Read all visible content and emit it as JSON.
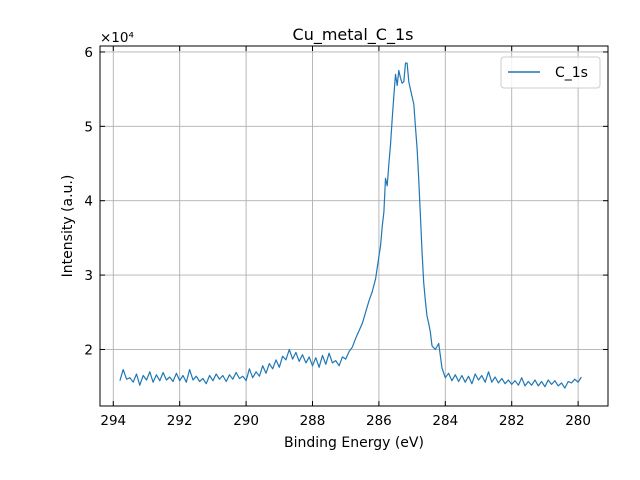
{
  "chart_data": {
    "type": "line",
    "title": "Cu_metal_C_1s",
    "xlabel": "Binding Energy (eV)",
    "ylabel": "Intensity (a.u.)",
    "y_scale_multiplier": "×10⁴",
    "x_reversed": true,
    "xlim": [
      294.4,
      279.1
    ],
    "ylim": [
      12400,
      60800
    ],
    "x_ticks": [
      294,
      292,
      290,
      288,
      286,
      284,
      282,
      280
    ],
    "x_tick_labels": [
      "294",
      "292",
      "290",
      "288",
      "286",
      "284",
      "282",
      "280"
    ],
    "y_ticks": [
      20000,
      30000,
      40000,
      50000,
      60000
    ],
    "y_tick_labels": [
      "2",
      "3",
      "4",
      "5",
      "6"
    ],
    "grid": true,
    "legend_position": "top-right",
    "series": [
      {
        "name": "C_1s",
        "color": "#1f77b4",
        "points": [
          [
            293.8,
            15800
          ],
          [
            293.7,
            17300
          ],
          [
            293.6,
            16000
          ],
          [
            293.5,
            16200
          ],
          [
            293.4,
            15600
          ],
          [
            293.3,
            16700
          ],
          [
            293.2,
            15200
          ],
          [
            293.1,
            16500
          ],
          [
            293.0,
            15900
          ],
          [
            292.9,
            17000
          ],
          [
            292.8,
            15600
          ],
          [
            292.7,
            16600
          ],
          [
            292.6,
            15800
          ],
          [
            292.5,
            16900
          ],
          [
            292.4,
            15900
          ],
          [
            292.3,
            16300
          ],
          [
            292.2,
            15700
          ],
          [
            292.1,
            16800
          ],
          [
            292.0,
            15800
          ],
          [
            291.9,
            16500
          ],
          [
            291.8,
            15600
          ],
          [
            291.7,
            17300
          ],
          [
            291.6,
            15900
          ],
          [
            291.5,
            16400
          ],
          [
            291.4,
            15700
          ],
          [
            291.3,
            16100
          ],
          [
            291.2,
            15400
          ],
          [
            291.1,
            16500
          ],
          [
            291.0,
            15800
          ],
          [
            290.9,
            16700
          ],
          [
            290.8,
            16000
          ],
          [
            290.7,
            16500
          ],
          [
            290.6,
            15700
          ],
          [
            290.5,
            16600
          ],
          [
            290.4,
            16000
          ],
          [
            290.3,
            16900
          ],
          [
            290.2,
            16100
          ],
          [
            290.1,
            16400
          ],
          [
            290.0,
            15800
          ],
          [
            289.9,
            17400
          ],
          [
            289.8,
            16200
          ],
          [
            289.7,
            17000
          ],
          [
            289.6,
            16400
          ],
          [
            289.5,
            17800
          ],
          [
            289.4,
            16800
          ],
          [
            289.3,
            18100
          ],
          [
            289.2,
            17400
          ],
          [
            289.1,
            18600
          ],
          [
            289.0,
            17600
          ],
          [
            288.9,
            19100
          ],
          [
            288.8,
            18600
          ],
          [
            288.7,
            20000
          ],
          [
            288.6,
            18700
          ],
          [
            288.5,
            19600
          ],
          [
            288.4,
            18400
          ],
          [
            288.3,
            19300
          ],
          [
            288.2,
            18200
          ],
          [
            288.1,
            19000
          ],
          [
            288.0,
            17800
          ],
          [
            287.9,
            18900
          ],
          [
            287.8,
            17600
          ],
          [
            287.7,
            19200
          ],
          [
            287.6,
            18000
          ],
          [
            287.5,
            19500
          ],
          [
            287.4,
            18200
          ],
          [
            287.3,
            18500
          ],
          [
            287.2,
            17800
          ],
          [
            287.1,
            19000
          ],
          [
            287.0,
            18700
          ],
          [
            286.9,
            19700
          ],
          [
            286.8,
            20300
          ],
          [
            286.7,
            21500
          ],
          [
            286.6,
            22500
          ],
          [
            286.5,
            23500
          ],
          [
            286.4,
            25000
          ],
          [
            286.3,
            26500
          ],
          [
            286.2,
            27800
          ],
          [
            286.1,
            29500
          ],
          [
            286.0,
            32500
          ],
          [
            285.95,
            34000
          ],
          [
            285.9,
            36500
          ],
          [
            285.85,
            38500
          ],
          [
            285.8,
            43000
          ],
          [
            285.75,
            42000
          ],
          [
            285.7,
            45000
          ],
          [
            285.65,
            47500
          ],
          [
            285.6,
            51000
          ],
          [
            285.55,
            54000
          ],
          [
            285.5,
            57000
          ],
          [
            285.45,
            55500
          ],
          [
            285.4,
            57500
          ],
          [
            285.35,
            56500
          ],
          [
            285.3,
            55800
          ],
          [
            285.25,
            56000
          ],
          [
            285.2,
            58500
          ],
          [
            285.15,
            58500
          ],
          [
            285.1,
            56000
          ],
          [
            285.05,
            55000
          ],
          [
            285.0,
            54000
          ],
          [
            284.95,
            53000
          ],
          [
            284.9,
            50000
          ],
          [
            284.85,
            47000
          ],
          [
            284.8,
            43000
          ],
          [
            284.75,
            38000
          ],
          [
            284.7,
            33000
          ],
          [
            284.65,
            29000
          ],
          [
            284.6,
            26500
          ],
          [
            284.55,
            24500
          ],
          [
            284.5,
            23500
          ],
          [
            284.45,
            22300
          ],
          [
            284.4,
            20500
          ],
          [
            284.3,
            20000
          ],
          [
            284.2,
            20800
          ],
          [
            284.1,
            17500
          ],
          [
            284.0,
            16200
          ],
          [
            283.9,
            16800
          ],
          [
            283.8,
            15800
          ],
          [
            283.7,
            16600
          ],
          [
            283.6,
            15700
          ],
          [
            283.5,
            16500
          ],
          [
            283.4,
            15600
          ],
          [
            283.3,
            16400
          ],
          [
            283.2,
            15400
          ],
          [
            283.1,
            16700
          ],
          [
            283.0,
            15900
          ],
          [
            282.9,
            16500
          ],
          [
            282.8,
            15600
          ],
          [
            282.7,
            17000
          ],
          [
            282.6,
            15600
          ],
          [
            282.5,
            16300
          ],
          [
            282.4,
            15500
          ],
          [
            282.3,
            16100
          ],
          [
            282.2,
            15400
          ],
          [
            282.1,
            15900
          ],
          [
            282.0,
            15300
          ],
          [
            281.9,
            15800
          ],
          [
            281.8,
            15200
          ],
          [
            281.7,
            16200
          ],
          [
            281.6,
            15100
          ],
          [
            281.5,
            15700
          ],
          [
            281.4,
            15200
          ],
          [
            281.3,
            15900
          ],
          [
            281.2,
            15100
          ],
          [
            281.1,
            15700
          ],
          [
            281.0,
            15000
          ],
          [
            280.9,
            15900
          ],
          [
            280.8,
            15300
          ],
          [
            280.7,
            15800
          ],
          [
            280.6,
            15100
          ],
          [
            280.5,
            15500
          ],
          [
            280.4,
            14800
          ],
          [
            280.3,
            15700
          ],
          [
            280.2,
            15500
          ],
          [
            280.1,
            16000
          ],
          [
            280.0,
            15600
          ],
          [
            279.9,
            16300
          ]
        ]
      }
    ]
  }
}
